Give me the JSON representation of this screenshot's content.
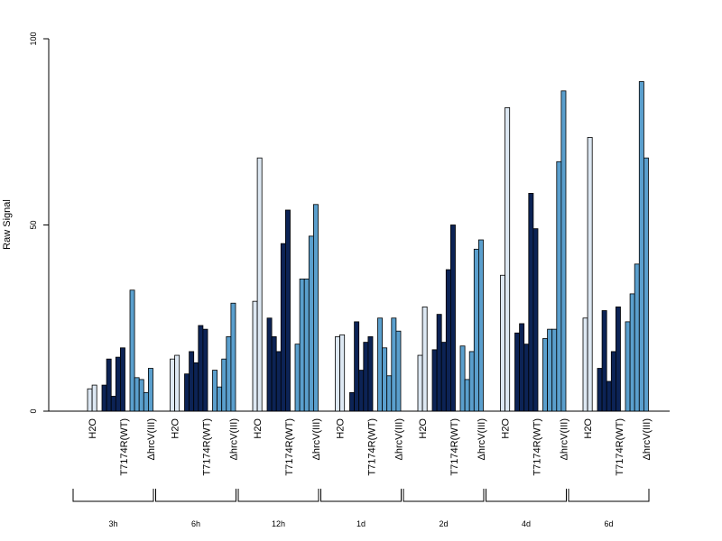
{
  "chart_data": {
    "type": "bar",
    "ylabel": "Raw Signal",
    "ylim": [
      0,
      100
    ],
    "yticks": [
      0,
      50,
      100
    ],
    "categories_per_group": [
      "H2O",
      "T7174R(WT)",
      "ΔhrcV(III)"
    ],
    "colors": {
      "H2O": "#dde8f3",
      "T7174R(WT)": "#0c2355",
      "ΔhrcV(III)": "#5a9fcd"
    },
    "groups": [
      {
        "label": "3h",
        "H2O": [
          6,
          7
        ],
        "T7174R(WT)": [
          7,
          14,
          4,
          14.5,
          17
        ],
        "ΔhrcV(III)": [
          32.5,
          9,
          8.5,
          5,
          11.5
        ]
      },
      {
        "label": "6h",
        "H2O": [
          14,
          15
        ],
        "T7174R(WT)": [
          10,
          16,
          13,
          23,
          22
        ],
        "ΔhrcV(III)": [
          11,
          6.5,
          14,
          20,
          29
        ]
      },
      {
        "label": "12h",
        "H2O": [
          29.5,
          68
        ],
        "T7174R(WT)": [
          25,
          20,
          16,
          45,
          54
        ],
        "ΔhrcV(III)": [
          18,
          35.5,
          35.5,
          47,
          55.5
        ]
      },
      {
        "label": "1d",
        "H2O": [
          20,
          20.5
        ],
        "T7174R(WT)": [
          5,
          24,
          11,
          18.5,
          20
        ],
        "ΔhrcV(III)": [
          25,
          17,
          9.5,
          25,
          21.5
        ]
      },
      {
        "label": "2d",
        "H2O": [
          15,
          28
        ],
        "T7174R(WT)": [
          16.5,
          26,
          18.5,
          38,
          50
        ],
        "ΔhrcV(III)": [
          17.5,
          8.5,
          16,
          43.5,
          46
        ]
      },
      {
        "label": "4d",
        "H2O": [
          36.5,
          81.5
        ],
        "T7174R(WT)": [
          21,
          23.5,
          18,
          58.5,
          49
        ],
        "ΔhrcV(III)": [
          19.5,
          22,
          22,
          67,
          86
        ]
      },
      {
        "label": "6d",
        "H2O": [
          25,
          73.5
        ],
        "T7174R(WT)": [
          11.5,
          27,
          8,
          16,
          28
        ],
        "ΔhrcV(III)": [
          24,
          31.5,
          39.5,
          88.5,
          68
        ]
      }
    ]
  }
}
